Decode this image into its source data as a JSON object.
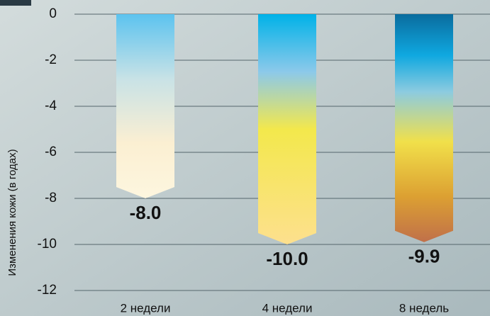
{
  "chart_data": {
    "type": "bar",
    "y_label": "Изменения кожи (в годах)",
    "categories": [
      "2 недели",
      "4 недели",
      "8 недель"
    ],
    "values": [
      -8.0,
      -10.0,
      -9.9
    ],
    "value_labels": [
      "-8.0",
      "-10.0",
      "-9.9"
    ],
    "ylim": [
      -12,
      0
    ],
    "yticks": [
      -12,
      -10,
      -8,
      -6,
      -4,
      -2,
      0
    ],
    "grid": true
  }
}
